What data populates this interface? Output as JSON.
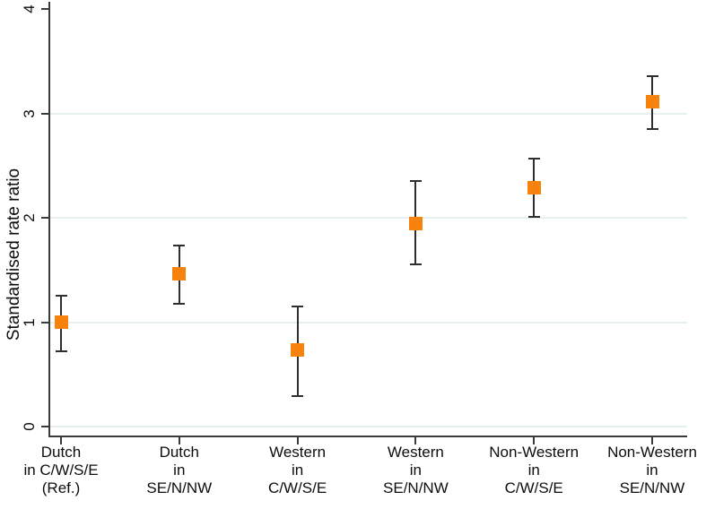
{
  "chart_data": {
    "type": "scatter",
    "subtype": "point-estimates-with-ci-errorbars",
    "title": "",
    "xlabel": "",
    "ylabel": "Standardised rate ratio",
    "ylim": [
      0,
      4
    ],
    "yticks": [
      0,
      1,
      2,
      3,
      4
    ],
    "gridlines_at": [
      0,
      1,
      2,
      3
    ],
    "grid_on": true,
    "legend": "none",
    "categories": [
      "Dutch in C/W/S/E (Ref.)",
      "Dutch in SE/N/NW",
      "Western in C/W/S/E",
      "Western in SE/N/NW",
      "Non-Western in C/W/S/E",
      "Non-Western in SE/N/NW"
    ],
    "points": [
      {
        "label_lines": [
          "Dutch",
          "in C/W/S/E",
          "(Ref.)"
        ],
        "estimate": 1.0,
        "ci_low": 0.72,
        "ci_high": 1.25
      },
      {
        "label_lines": [
          "Dutch",
          "in",
          "SE/N/NW"
        ],
        "estimate": 1.46,
        "ci_low": 1.18,
        "ci_high": 1.73
      },
      {
        "label_lines": [
          "Western",
          "in",
          "C/W/S/E"
        ],
        "estimate": 0.73,
        "ci_low": 0.29,
        "ci_high": 1.15
      },
      {
        "label_lines": [
          "Western",
          "in",
          "SE/N/NW"
        ],
        "estimate": 1.94,
        "ci_low": 1.55,
        "ci_high": 2.35
      },
      {
        "label_lines": [
          "Non-Western",
          "in",
          "C/W/S/E"
        ],
        "estimate": 2.29,
        "ci_low": 2.01,
        "ci_high": 2.57
      },
      {
        "label_lines": [
          "Non-Western",
          "in",
          "SE/N/NW"
        ],
        "estimate": 3.11,
        "ci_low": 2.85,
        "ci_high": 3.36
      }
    ],
    "colors": {
      "marker": "#f7820d",
      "errorbar": "#2e2e2e",
      "axis": "#3a3a3a",
      "grid": "#e6f0ef",
      "text": "#0d0d0d",
      "background": "#ffffff"
    }
  }
}
